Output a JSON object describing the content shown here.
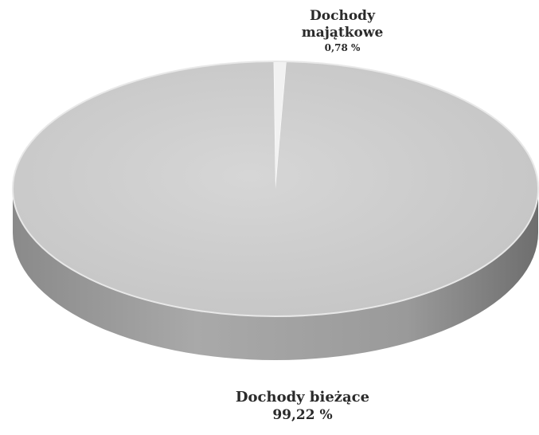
{
  "chart_data": {
    "type": "pie",
    "title": "",
    "slices": [
      {
        "label": "Dochody bieżące",
        "value": 99.22,
        "value_label": "99,22 %",
        "color": "#cfcfcf"
      },
      {
        "label": "Dochody majątkowe",
        "value": 0.78,
        "value_label": "0,78 %",
        "color": "#f2f2f2"
      }
    ],
    "legend": "none",
    "style": "3d"
  }
}
